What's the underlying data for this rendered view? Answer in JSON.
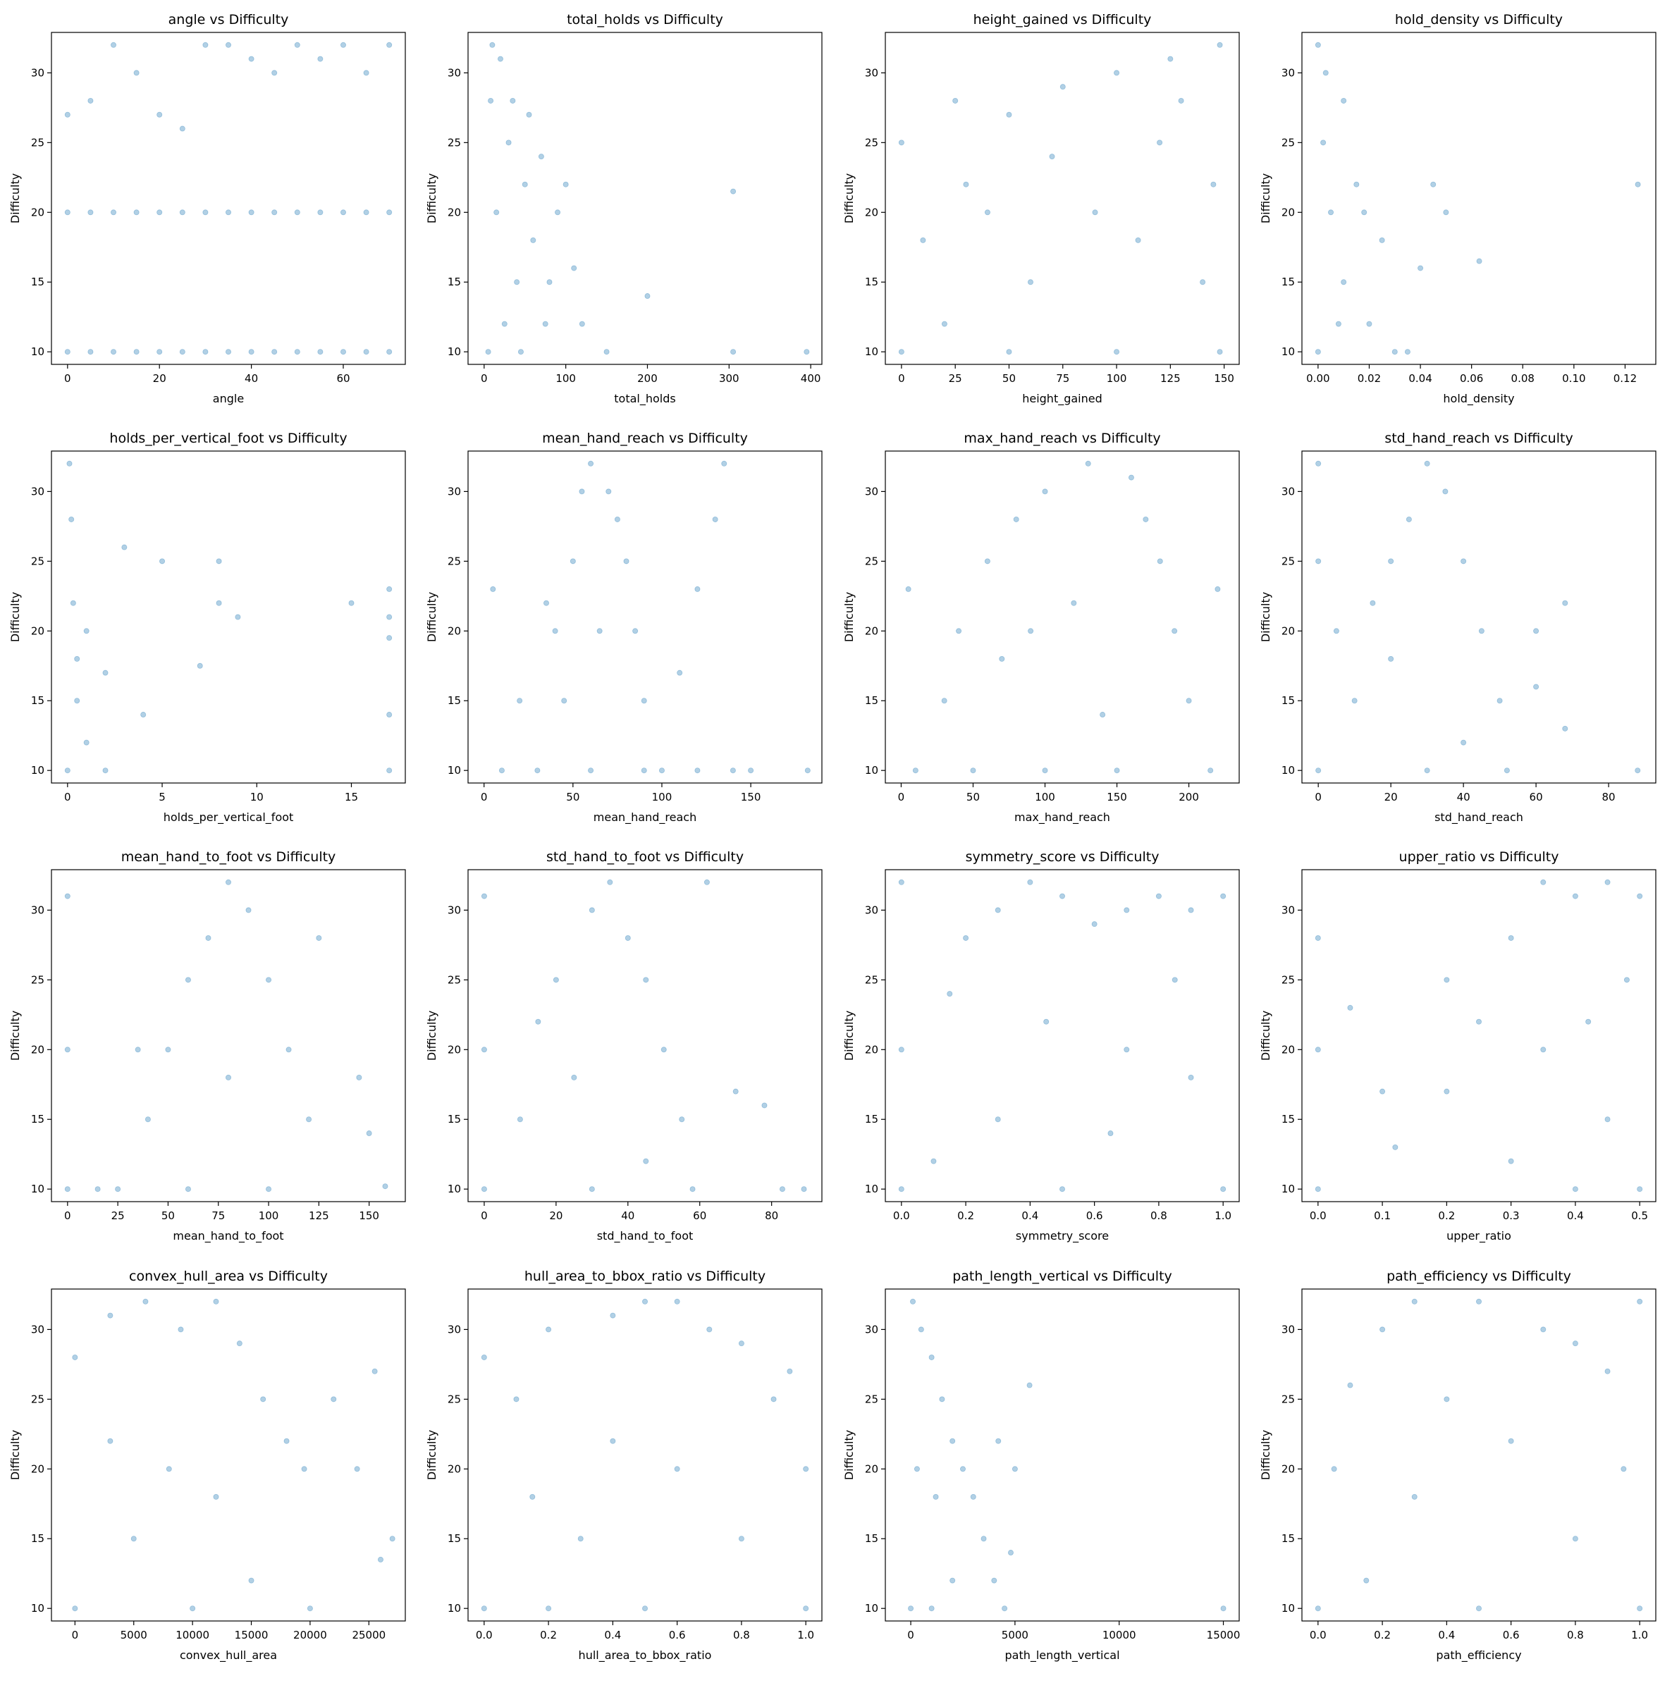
{
  "chart_data": [
    {
      "type": "scatter",
      "title": "angle vs Difficulty",
      "xlabel": "angle",
      "ylabel": "Difficulty",
      "color": "#1f77b4",
      "alpha": 0.35,
      "x": [
        0,
        0,
        0,
        5,
        5,
        5,
        10,
        10,
        10,
        15,
        15,
        15,
        20,
        20,
        20,
        25,
        25,
        25,
        30,
        30,
        30,
        35,
        35,
        35,
        40,
        40,
        40,
        45,
        45,
        45,
        50,
        50,
        50,
        55,
        55,
        55,
        60,
        60,
        60,
        65,
        65,
        65,
        70,
        70,
        70
      ],
      "y": [
        10,
        20,
        27,
        10,
        20,
        28,
        10,
        20,
        32,
        10,
        20,
        30,
        10,
        20,
        27,
        10,
        20,
        26,
        10,
        20,
        32,
        10,
        20,
        32,
        10,
        20,
        31,
        10,
        20,
        30,
        10,
        20,
        32,
        10,
        20,
        31,
        10,
        20,
        32,
        10,
        20,
        30,
        10,
        20,
        32
      ],
      "xlim": [
        -3.5,
        73.5
      ],
      "ylim": [
        9.1,
        32.9
      ],
      "xticks": [
        0,
        20,
        40,
        60
      ],
      "yticks": [
        10,
        15,
        20,
        25,
        30
      ]
    },
    {
      "type": "scatter",
      "title": "total_holds vs Difficulty",
      "xlabel": "total_holds",
      "ylabel": "Difficulty",
      "color": "#1f77b4",
      "alpha": 0.35,
      "x": [
        5,
        10,
        20,
        30,
        15,
        40,
        25,
        50,
        60,
        70,
        80,
        90,
        100,
        110,
        120,
        150,
        200,
        305,
        305,
        395,
        8,
        35,
        45,
        55,
        75
      ],
      "y": [
        10,
        32,
        31,
        25,
        20,
        15,
        12,
        22,
        18,
        24,
        15,
        20,
        22,
        16,
        12,
        10,
        14,
        21.5,
        10,
        10,
        28,
        28,
        10,
        27,
        12
      ],
      "xlim": [
        -19.7,
        413.7
      ],
      "ylim": [
        9.1,
        32.9
      ],
      "xticks": [
        0,
        100,
        200,
        300,
        400
      ],
      "yticks": [
        10,
        15,
        20,
        25,
        30
      ]
    },
    {
      "type": "scatter",
      "title": "height_gained vs Difficulty",
      "xlabel": "height_gained",
      "ylabel": "Difficulty",
      "color": "#1f77b4",
      "alpha": 0.35,
      "x": [
        0,
        0,
        25,
        50,
        75,
        100,
        125,
        148,
        148,
        100,
        50,
        10,
        30,
        60,
        90,
        120,
        140,
        20,
        40,
        70,
        110,
        130,
        145
      ],
      "y": [
        10,
        25,
        28,
        27,
        29,
        30,
        31,
        32,
        10,
        10,
        10,
        18,
        22,
        15,
        20,
        25,
        15,
        12,
        20,
        24,
        18,
        28,
        22
      ],
      "xlim": [
        -7.5,
        157
      ],
      "ylim": [
        9.1,
        32.9
      ],
      "xticks": [
        0,
        25,
        50,
        75,
        100,
        125,
        150
      ],
      "yticks": [
        10,
        15,
        20,
        25,
        30
      ]
    },
    {
      "type": "scatter",
      "title": "hold_density vs Difficulty",
      "xlabel": "hold_density",
      "ylabel": "Difficulty",
      "color": "#1f77b4",
      "alpha": 0.35,
      "x": [
        0,
        0,
        0.002,
        0.005,
        0.01,
        0.01,
        0.015,
        0.02,
        0.025,
        0.03,
        0.035,
        0.04,
        0.045,
        0.05,
        0.063,
        0.125,
        0.008,
        0.003,
        0.018
      ],
      "y": [
        10,
        32,
        25,
        20,
        15,
        28,
        22,
        12,
        18,
        10,
        10,
        16,
        22,
        20,
        16.5,
        22,
        12,
        30,
        20
      ],
      "xlim": [
        -0.0063,
        0.132
      ],
      "ylim": [
        9.1,
        32.9
      ],
      "xticks": [
        {
          "value": 0,
          "label": "0.00"
        },
        {
          "value": 0.02,
          "label": "0.02"
        },
        {
          "value": 0.04,
          "label": "0.04"
        },
        {
          "value": 0.06,
          "label": "0.06"
        },
        {
          "value": 0.08,
          "label": "0.08"
        },
        {
          "value": 0.1,
          "label": "0.10"
        },
        {
          "value": 0.12,
          "label": "0.12"
        }
      ],
      "yticks": [
        10,
        15,
        20,
        25,
        30
      ]
    },
    {
      "type": "scatter",
      "title": "holds_per_vertical_foot vs Difficulty",
      "xlabel": "holds_per_vertical_foot",
      "ylabel": "Difficulty",
      "color": "#1f77b4",
      "alpha": 0.35,
      "x": [
        0,
        0.1,
        0.2,
        0.3,
        0.5,
        1,
        2,
        3,
        4,
        5,
        7,
        8,
        8,
        9,
        15,
        17,
        17,
        17,
        17,
        17,
        2,
        1,
        0.5
      ],
      "y": [
        10,
        32,
        28,
        22,
        15,
        20,
        17,
        26,
        14,
        25,
        17.5,
        25,
        22,
        21,
        22,
        23,
        21,
        19.5,
        14,
        10,
        10,
        12,
        18
      ],
      "xlim": [
        -0.85,
        17.85
      ],
      "ylim": [
        9.1,
        32.9
      ],
      "xticks": [
        0,
        5,
        10,
        15
      ],
      "yticks": [
        10,
        15,
        20,
        25,
        30
      ]
    },
    {
      "type": "scatter",
      "title": "mean_hand_reach vs Difficulty",
      "xlabel": "mean_hand_reach",
      "ylabel": "Difficulty",
      "color": "#1f77b4",
      "alpha": 0.35,
      "x": [
        10,
        30,
        60,
        90,
        100,
        120,
        140,
        150,
        182,
        20,
        40,
        50,
        55,
        60,
        70,
        80,
        85,
        90,
        45,
        65,
        35,
        120,
        135,
        130,
        110,
        75,
        5
      ],
      "y": [
        10,
        10,
        10,
        10,
        10,
        10,
        10,
        10,
        10,
        15,
        20,
        25,
        30,
        32,
        30,
        25,
        20,
        15,
        15,
        20,
        22,
        23,
        32,
        28,
        17,
        28,
        23
      ],
      "xlim": [
        -9,
        190
      ],
      "ylim": [
        9.1,
        32.9
      ],
      "xticks": [
        0,
        50,
        100,
        150
      ],
      "yticks": [
        10,
        15,
        20,
        25,
        30
      ]
    },
    {
      "type": "scatter",
      "title": "max_hand_reach vs Difficulty",
      "xlabel": "max_hand_reach",
      "ylabel": "Difficulty",
      "color": "#1f77b4",
      "alpha": 0.35,
      "x": [
        5,
        10,
        30,
        40,
        60,
        80,
        100,
        130,
        160,
        170,
        180,
        190,
        200,
        215,
        100,
        150,
        70,
        120,
        140,
        220,
        50,
        90
      ],
      "y": [
        23,
        10,
        15,
        20,
        25,
        28,
        30,
        32,
        31,
        28,
        25,
        20,
        15,
        10,
        10,
        10,
        18,
        22,
        14,
        23,
        10,
        20
      ],
      "xlim": [
        -11,
        235
      ],
      "ylim": [
        9.1,
        32.9
      ],
      "xticks": [
        0,
        50,
        100,
        150,
        200
      ],
      "yticks": [
        10,
        15,
        20,
        25,
        30
      ]
    },
    {
      "type": "scatter",
      "title": "std_hand_reach vs Difficulty",
      "xlabel": "std_hand_reach",
      "ylabel": "Difficulty",
      "color": "#1f77b4",
      "alpha": 0.35,
      "x": [
        0,
        0,
        0,
        10,
        15,
        20,
        25,
        30,
        35,
        40,
        45,
        50,
        52,
        30,
        20,
        40,
        60,
        68,
        68,
        88,
        60,
        5
      ],
      "y": [
        10,
        32,
        25,
        15,
        22,
        25,
        28,
        32,
        30,
        25,
        20,
        15,
        10,
        10,
        18,
        12,
        20,
        22,
        13,
        10,
        16,
        20
      ],
      "xlim": [
        -4.5,
        93
      ],
      "ylim": [
        9.1,
        32.9
      ],
      "xticks": [
        0,
        20,
        40,
        60,
        80
      ],
      "yticks": [
        10,
        15,
        20,
        25,
        30
      ]
    },
    {
      "type": "scatter",
      "title": "mean_hand_to_foot vs Difficulty",
      "xlabel": "mean_hand_to_foot",
      "ylabel": "Difficulty",
      "color": "#1f77b4",
      "alpha": 0.35,
      "x": [
        0,
        0,
        0,
        25,
        40,
        50,
        60,
        70,
        80,
        90,
        100,
        110,
        120,
        100,
        60,
        125,
        150,
        158,
        145,
        35,
        15,
        80
      ],
      "y": [
        10,
        31,
        20,
        10,
        15,
        20,
        25,
        28,
        32,
        30,
        25,
        20,
        15,
        10,
        10,
        28,
        14,
        10.2,
        18,
        20,
        10,
        18
      ],
      "xlim": [
        -8,
        168
      ],
      "ylim": [
        9.1,
        32.9
      ],
      "xticks": [
        0,
        25,
        50,
        75,
        100,
        125,
        150
      ],
      "yticks": [
        10,
        15,
        20,
        25,
        30
      ]
    },
    {
      "type": "scatter",
      "title": "std_hand_to_foot vs Difficulty",
      "xlabel": "std_hand_to_foot",
      "ylabel": "Difficulty",
      "color": "#1f77b4",
      "alpha": 0.35,
      "x": [
        0,
        0,
        0,
        10,
        15,
        20,
        30,
        35,
        40,
        45,
        50,
        55,
        58,
        30,
        62,
        70,
        78,
        83,
        89,
        25,
        45
      ],
      "y": [
        10,
        31,
        20,
        15,
        22,
        25,
        30,
        32,
        28,
        25,
        20,
        15,
        10,
        10,
        32,
        17,
        16,
        10,
        10,
        18,
        12
      ],
      "xlim": [
        -4.5,
        94
      ],
      "ylim": [
        9.1,
        32.9
      ],
      "xticks": [
        0,
        20,
        40,
        60,
        80
      ],
      "yticks": [
        10,
        15,
        20,
        25,
        30
      ]
    },
    {
      "type": "scatter",
      "title": "symmetry_score vs Difficulty",
      "xlabel": "symmetry_score",
      "ylabel": "Difficulty",
      "color": "#1f77b4",
      "alpha": 0.35,
      "x": [
        0,
        0,
        0,
        0.1,
        0.2,
        0.3,
        0.4,
        0.5,
        0.6,
        0.7,
        0.8,
        0.9,
        1,
        1,
        0.5,
        0.3,
        0.7,
        0.9,
        0.15,
        0.45,
        0.85,
        0.65
      ],
      "y": [
        10,
        32,
        20,
        12,
        28,
        30,
        32,
        31,
        29,
        30,
        31,
        30,
        31,
        10,
        10,
        15,
        20,
        18,
        24,
        22,
        25,
        14
      ],
      "xlim": [
        -0.05,
        1.05
      ],
      "ylim": [
        9.1,
        32.9
      ],
      "xticks": [
        {
          "value": 0,
          "label": "0.0"
        },
        {
          "value": 0.2,
          "label": "0.2"
        },
        {
          "value": 0.4,
          "label": "0.4"
        },
        {
          "value": 0.6,
          "label": "0.6"
        },
        {
          "value": 0.8,
          "label": "0.8"
        },
        {
          "value": 1,
          "label": "1.0"
        }
      ],
      "yticks": [
        10,
        15,
        20,
        25,
        30
      ]
    },
    {
      "type": "scatter",
      "title": "upper_ratio vs Difficulty",
      "xlabel": "upper_ratio",
      "ylabel": "Difficulty",
      "color": "#1f77b4",
      "alpha": 0.35,
      "x": [
        0,
        0,
        0,
        0.05,
        0.1,
        0.12,
        0.2,
        0.25,
        0.3,
        0.35,
        0.4,
        0.45,
        0.5,
        0.5,
        0.4,
        0.35,
        0.45,
        0.3,
        0.2,
        0.48,
        0.42
      ],
      "y": [
        10,
        28,
        20,
        23,
        17,
        13,
        25,
        22,
        28,
        32,
        31,
        32,
        31,
        10,
        10,
        20,
        15,
        12,
        17,
        25,
        22
      ],
      "xlim": [
        -0.025,
        0.525
      ],
      "ylim": [
        9.1,
        32.9
      ],
      "xticks": [
        {
          "value": 0,
          "label": "0.0"
        },
        {
          "value": 0.1,
          "label": "0.1"
        },
        {
          "value": 0.2,
          "label": "0.2"
        },
        {
          "value": 0.3,
          "label": "0.3"
        },
        {
          "value": 0.4,
          "label": "0.4"
        },
        {
          "value": 0.5,
          "label": "0.5"
        }
      ],
      "yticks": [
        10,
        15,
        20,
        25,
        30
      ]
    },
    {
      "type": "scatter",
      "title": "convex_hull_area vs Difficulty",
      "xlabel": "convex_hull_area",
      "ylabel": "Difficulty",
      "color": "#1f77b4",
      "alpha": 0.35,
      "x": [
        0,
        0,
        3000,
        6000,
        9000,
        12000,
        14000,
        16000,
        18000,
        19500,
        20000,
        10000,
        5000,
        8000,
        12000,
        15000,
        22000,
        24000,
        25500,
        26000,
        27000,
        3000
      ],
      "y": [
        10,
        28,
        31,
        32,
        30,
        32,
        29,
        25,
        22,
        20,
        10,
        10,
        15,
        20,
        18,
        12,
        25,
        20,
        27,
        13.5,
        15,
        22
      ],
      "xlim": [
        -2000,
        28100
      ],
      "ylim": [
        9.1,
        32.9
      ],
      "xticks": [
        0,
        5000,
        10000,
        15000,
        20000,
        25000
      ],
      "yticks": [
        10,
        15,
        20,
        25,
        30
      ]
    },
    {
      "type": "scatter",
      "title": "hull_area_to_bbox_ratio vs Difficulty",
      "xlabel": "hull_area_to_bbox_ratio",
      "ylabel": "Difficulty",
      "color": "#1f77b4",
      "alpha": 0.35,
      "x": [
        0,
        0,
        0.1,
        0.2,
        0.4,
        0.5,
        0.6,
        0.7,
        0.8,
        0.9,
        1,
        1,
        0.3,
        0.5,
        0.2,
        0.6,
        0.4,
        0.8,
        0.15,
        0.95
      ],
      "y": [
        10,
        28,
        25,
        30,
        31,
        32,
        32,
        30,
        29,
        25,
        20,
        10,
        15,
        10,
        10,
        20,
        22,
        15,
        18,
        27
      ],
      "xlim": [
        -0.05,
        1.05
      ],
      "ylim": [
        9.1,
        32.9
      ],
      "xticks": [
        {
          "value": 0,
          "label": "0.0"
        },
        {
          "value": 0.2,
          "label": "0.2"
        },
        {
          "value": 0.4,
          "label": "0.4"
        },
        {
          "value": 0.6,
          "label": "0.6"
        },
        {
          "value": 0.8,
          "label": "0.8"
        },
        {
          "value": 1,
          "label": "1.0"
        }
      ],
      "yticks": [
        10,
        15,
        20,
        25,
        30
      ]
    },
    {
      "type": "scatter",
      "title": "path_length_vertical vs Difficulty",
      "xlabel": "path_length_vertical",
      "ylabel": "Difficulty",
      "color": "#1f77b4",
      "alpha": 0.35,
      "x": [
        0,
        100,
        500,
        1000,
        1500,
        2000,
        2500,
        3000,
        3500,
        4000,
        4500,
        5000,
        5700,
        4800,
        1000,
        2000,
        300,
        1200,
        4200,
        15000
      ],
      "y": [
        10,
        32,
        30,
        28,
        25,
        22,
        20,
        18,
        15,
        12,
        10,
        20,
        26,
        14,
        10,
        12,
        20,
        18,
        22,
        10
      ],
      "xlim": [
        -1220,
        15760
      ],
      "ylim": [
        9.1,
        32.9
      ],
      "xticks": [
        0,
        5000,
        10000,
        15000
      ],
      "yticks": [
        10,
        15,
        20,
        25,
        30
      ]
    },
    {
      "type": "scatter",
      "title": "path_efficiency vs Difficulty",
      "xlabel": "path_efficiency",
      "ylabel": "Difficulty",
      "color": "#1f77b4",
      "alpha": 0.35,
      "x": [
        0,
        0.05,
        0.1,
        0.2,
        0.3,
        0.5,
        0.7,
        0.8,
        0.9,
        1,
        1,
        0.5,
        0.3,
        0.6,
        0.8,
        0.15,
        0.4,
        0.95
      ],
      "y": [
        10,
        20,
        26,
        30,
        32,
        32,
        30,
        29,
        27,
        32,
        10,
        10,
        18,
        22,
        15,
        12,
        25,
        20
      ],
      "xlim": [
        -0.05,
        1.05
      ],
      "ylim": [
        9.1,
        32.9
      ],
      "xticks": [
        {
          "value": 0,
          "label": "0.0"
        },
        {
          "value": 0.2,
          "label": "0.2"
        },
        {
          "value": 0.4,
          "label": "0.4"
        },
        {
          "value": 0.6,
          "label": "0.6"
        },
        {
          "value": 0.8,
          "label": "0.8"
        },
        {
          "value": 1,
          "label": "1.0"
        }
      ],
      "yticks": [
        10,
        15,
        20,
        25,
        30
      ]
    }
  ]
}
